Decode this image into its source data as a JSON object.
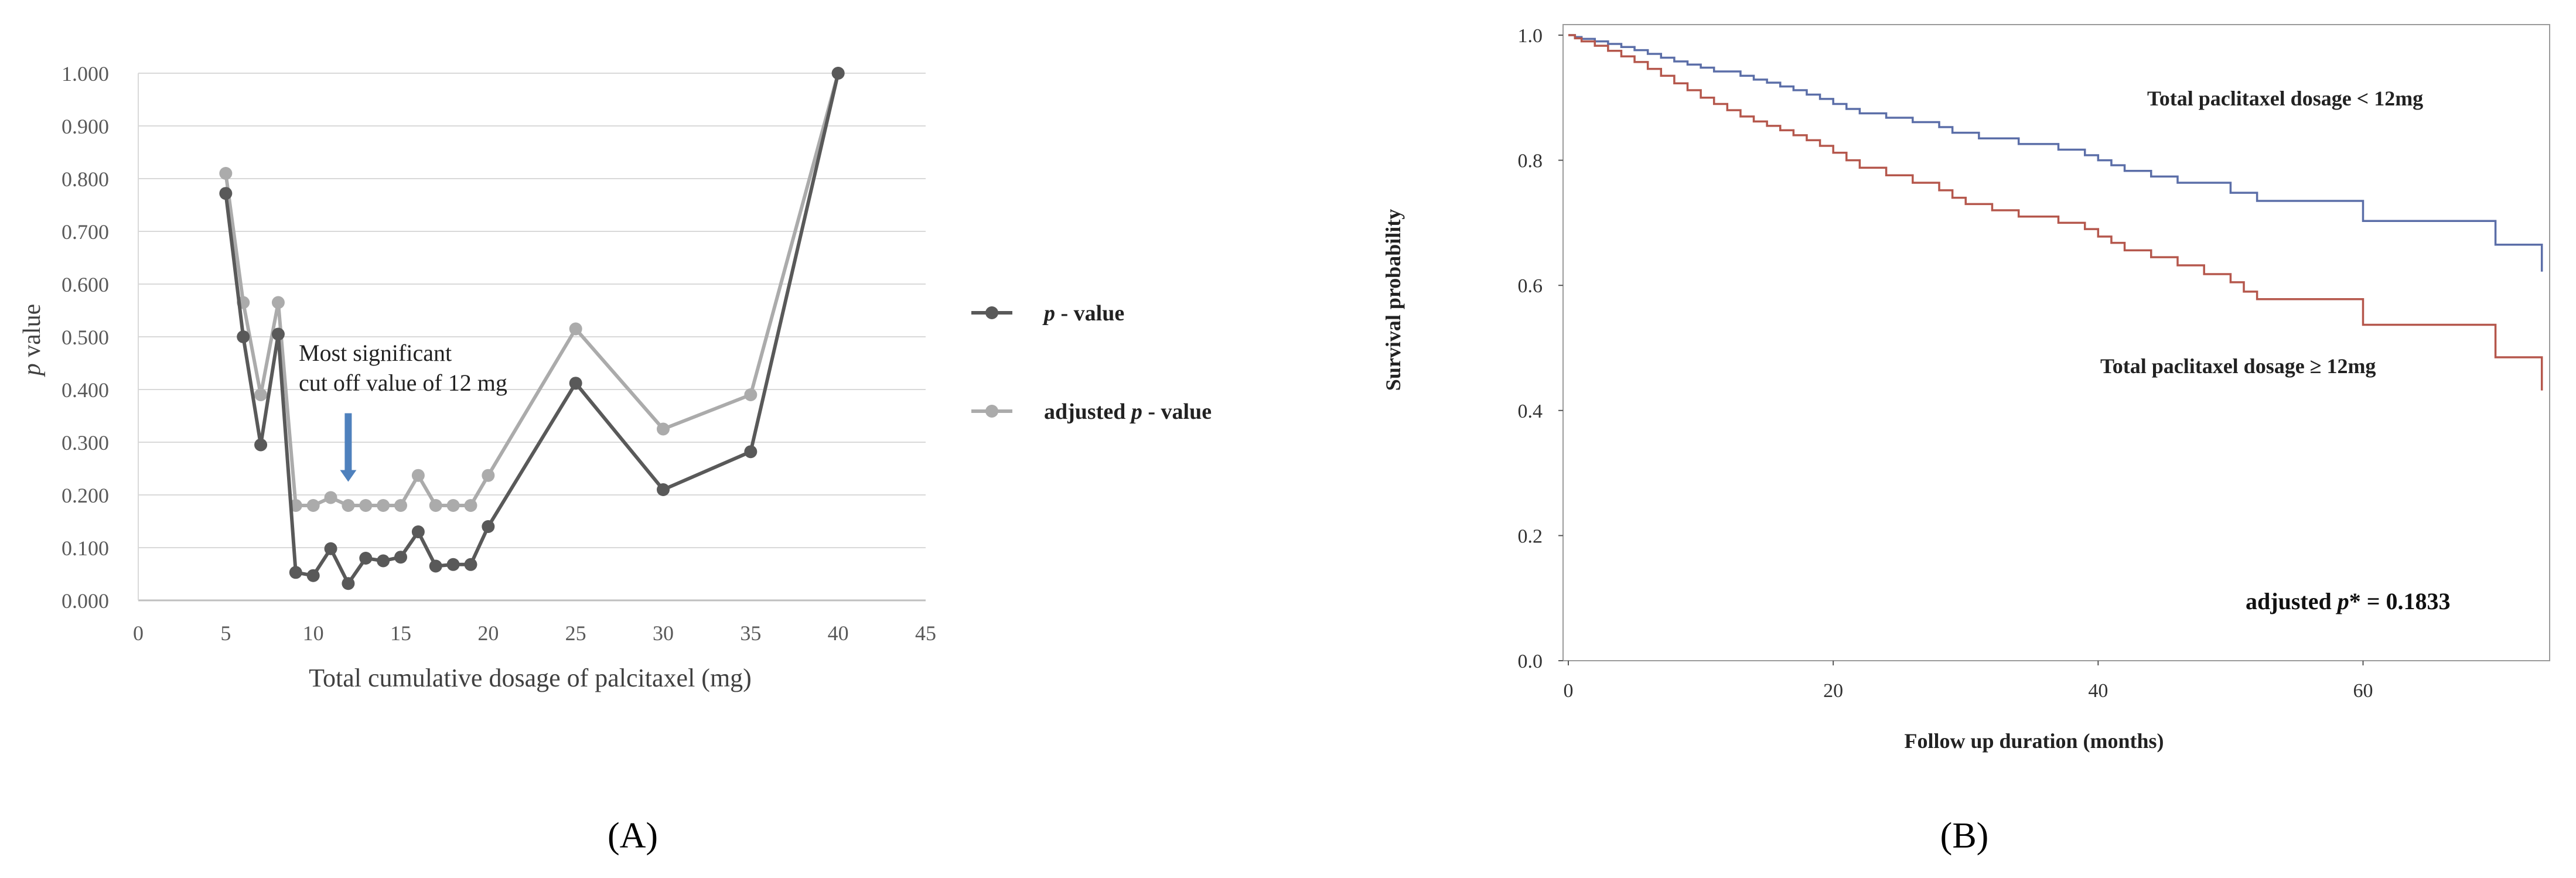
{
  "panels": {
    "a_label": "(A)",
    "b_label": "(B)"
  },
  "chart_data": [
    {
      "type": "line",
      "panel": "A",
      "xlabel": "Total cumulative dosage of palcitaxel (mg)",
      "ylabel_italic": "p",
      "ylabel_rest": " value",
      "xlim": [
        0,
        45
      ],
      "ylim": [
        0,
        1
      ],
      "x_ticks": [
        0,
        5,
        10,
        15,
        20,
        25,
        30,
        35,
        40,
        45
      ],
      "y_ticks": [
        0,
        0.1,
        0.2,
        0.3,
        0.4,
        0.5,
        0.6,
        0.7,
        0.8,
        0.9,
        1.0
      ],
      "x_tick_labels": [
        "0",
        "5",
        "10",
        "15",
        "20",
        "25",
        "30",
        "35",
        "40",
        "45"
      ],
      "y_tick_labels": [
        "0.000",
        "0.100",
        "0.200",
        "0.300",
        "0.400",
        "0.500",
        "0.600",
        "0.700",
        "0.800",
        "0.900",
        "1.000"
      ],
      "grid": "horizontal",
      "legend_position": "right",
      "annotation": {
        "line1": "Most significant",
        "line2": "cut off value of 12 mg",
        "arrow_x": 12,
        "arrow_y_top": 0.355,
        "arrow_y_bottom": 0.225,
        "arrow_color": "#4f81bd"
      },
      "series": [
        {
          "legend_italic": "p",
          "legend_rest": " - value",
          "color": "#595959",
          "x": [
            5,
            6,
            7,
            8,
            9,
            10,
            11,
            12,
            13,
            14,
            15,
            16,
            17,
            18,
            19,
            20,
            25,
            30,
            35,
            40
          ],
          "y": [
            0.772,
            0.5,
            0.295,
            0.505,
            0.053,
            0.047,
            0.098,
            0.032,
            0.08,
            0.075,
            0.082,
            0.13,
            0.065,
            0.068,
            0.068,
            0.14,
            0.412,
            0.21,
            0.282,
            1.0
          ]
        },
        {
          "legend_prefix": "adjusted ",
          "legend_italic": "p",
          "legend_rest": " - value",
          "color": "#ababab",
          "x": [
            5,
            6,
            7,
            8,
            9,
            10,
            11,
            12,
            13,
            14,
            15,
            16,
            17,
            18,
            19,
            20,
            25,
            30,
            35,
            40
          ],
          "y": [
            0.81,
            0.565,
            0.39,
            0.565,
            0.18,
            0.18,
            0.195,
            0.18,
            0.18,
            0.18,
            0.18,
            0.237,
            0.18,
            0.18,
            0.18,
            0.237,
            0.515,
            0.325,
            0.39,
            1.0
          ]
        }
      ]
    },
    {
      "type": "line",
      "panel": "B",
      "step": true,
      "xlabel": "Follow up duration (months)",
      "ylabel": "Survival probability",
      "xlim": [
        0,
        74
      ],
      "ylim": [
        0,
        1
      ],
      "x_ticks": [
        0,
        20,
        40,
        60
      ],
      "y_ticks": [
        0,
        0.2,
        0.4,
        0.6,
        0.8,
        1.0
      ],
      "x_tick_labels": [
        "0",
        "20",
        "40",
        "60"
      ],
      "y_tick_labels": [
        "0.0",
        "0.2",
        "0.4",
        "0.6",
        "0.8",
        "1.0"
      ],
      "grid": "none",
      "annotation": {
        "prefix": "adjusted ",
        "italic": "p",
        "rest": "* = 0.1833"
      },
      "series": [
        {
          "label": "Total paclitaxel dosage < 12mg",
          "color": "#5b6ea8",
          "x": [
            0,
            0.5,
            1,
            2,
            3,
            4,
            5,
            6,
            7,
            8,
            9,
            10,
            11,
            13,
            14,
            15,
            16,
            17,
            18,
            19,
            20,
            21,
            22,
            24,
            26,
            28,
            29,
            31,
            34,
            37,
            39,
            40,
            41,
            42,
            44,
            46,
            50,
            52,
            57,
            60,
            65,
            68,
            70,
            73.5
          ],
          "y": [
            1.0,
            0.997,
            0.994,
            0.99,
            0.986,
            0.981,
            0.976,
            0.97,
            0.964,
            0.958,
            0.953,
            0.948,
            0.942,
            0.935,
            0.929,
            0.924,
            0.918,
            0.912,
            0.905,
            0.898,
            0.89,
            0.882,
            0.875,
            0.868,
            0.861,
            0.853,
            0.844,
            0.835,
            0.826,
            0.817,
            0.808,
            0.8,
            0.792,
            0.783,
            0.774,
            0.764,
            0.748,
            0.735,
            0.735,
            0.703,
            0.703,
            0.703,
            0.665,
            0.622
          ]
        },
        {
          "label": "Total paclitaxel dosage ≥ 12mg",
          "color": "#b5574c",
          "x": [
            0,
            0.5,
            1,
            2,
            3,
            4,
            5,
            6,
            7,
            8,
            9,
            10,
            11,
            12,
            13,
            14,
            15,
            16,
            17,
            18,
            19,
            20,
            21,
            22,
            24,
            26,
            28,
            29,
            30,
            32,
            34,
            37,
            39,
            40,
            41,
            42,
            44,
            46,
            48,
            50,
            51,
            52,
            56,
            60,
            65,
            68,
            70,
            73.5
          ],
          "y": [
            1.0,
            0.995,
            0.99,
            0.983,
            0.975,
            0.966,
            0.957,
            0.946,
            0.935,
            0.923,
            0.912,
            0.9,
            0.89,
            0.88,
            0.87,
            0.862,
            0.855,
            0.848,
            0.84,
            0.832,
            0.823,
            0.812,
            0.8,
            0.788,
            0.776,
            0.764,
            0.752,
            0.74,
            0.73,
            0.72,
            0.71,
            0.7,
            0.69,
            0.678,
            0.668,
            0.656,
            0.645,
            0.632,
            0.618,
            0.605,
            0.59,
            0.578,
            0.578,
            0.537,
            0.537,
            0.537,
            0.485,
            0.432
          ]
        }
      ]
    }
  ]
}
